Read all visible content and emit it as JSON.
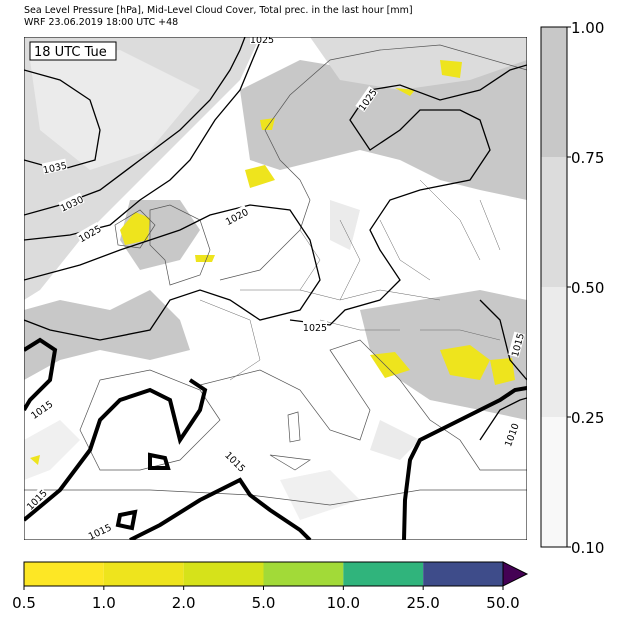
{
  "header": {
    "line1": "Sea Level Pressure [hPa], Mid-Level Cloud Cover, Total prec. in the last hour [mm]",
    "line2": "WRF 23.06.2019 18:00 UTC +48"
  },
  "time_label": "18 UTC Tue",
  "isobar_labels": [
    "1025",
    "1025",
    "1035",
    "1030",
    "1025",
    "1020",
    "1025",
    "1015",
    "1015",
    "1015",
    "1015",
    "1015",
    "1010"
  ],
  "cloud_colorbar": {
    "labels": [
      "1.00",
      "0.75",
      "0.50",
      "0.25",
      "0.10"
    ],
    "colors": [
      "#c8c8c8",
      "#dcdcdc",
      "#ebebeb",
      "#f8f8f8"
    ]
  },
  "precip_colorbar": {
    "labels": [
      "0.5",
      "1.0",
      "2.0",
      "5.0",
      "10.0",
      "25.0",
      "50.0"
    ],
    "colors": [
      "#fde725",
      "#eee41d",
      "#d6e21a",
      "#a2da38",
      "#30b47c",
      "#3e4c8a",
      "#440154"
    ]
  }
}
